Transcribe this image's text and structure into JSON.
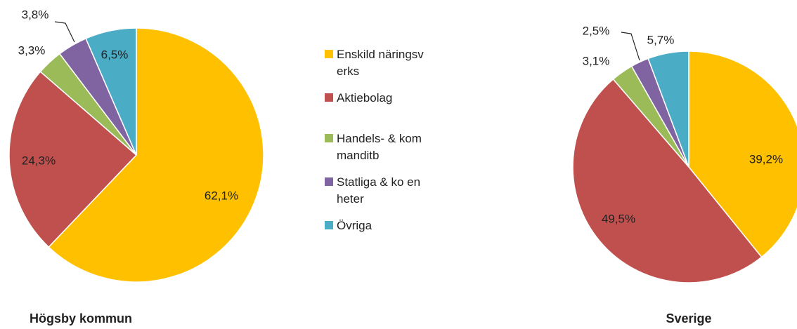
{
  "legend": {
    "items": [
      "Enskild näringsverks",
      "Aktiebolag",
      "Handels- & kommanditb",
      "Statliga & ko enheter",
      "Övriga"
    ],
    "colors": [
      "#FFC000",
      "#C0504D",
      "#9BBB59",
      "#8064A2",
      "#4BACC6"
    ]
  },
  "chart_data": [
    {
      "type": "pie",
      "title": "Högsby kommun",
      "values": [
        62.1,
        24.3,
        3.3,
        3.8,
        6.5
      ],
      "value_labels": [
        "62,1%",
        "24,3%",
        "3,3%",
        "3,8%",
        "6,5%"
      ]
    },
    {
      "type": "pie",
      "title": "Sverige",
      "values": [
        39.2,
        49.5,
        3.1,
        2.5,
        5.7
      ],
      "value_labels": [
        "39,2%",
        "49,5%",
        "3,1%",
        "2,5%",
        "5,7%"
      ]
    }
  ]
}
